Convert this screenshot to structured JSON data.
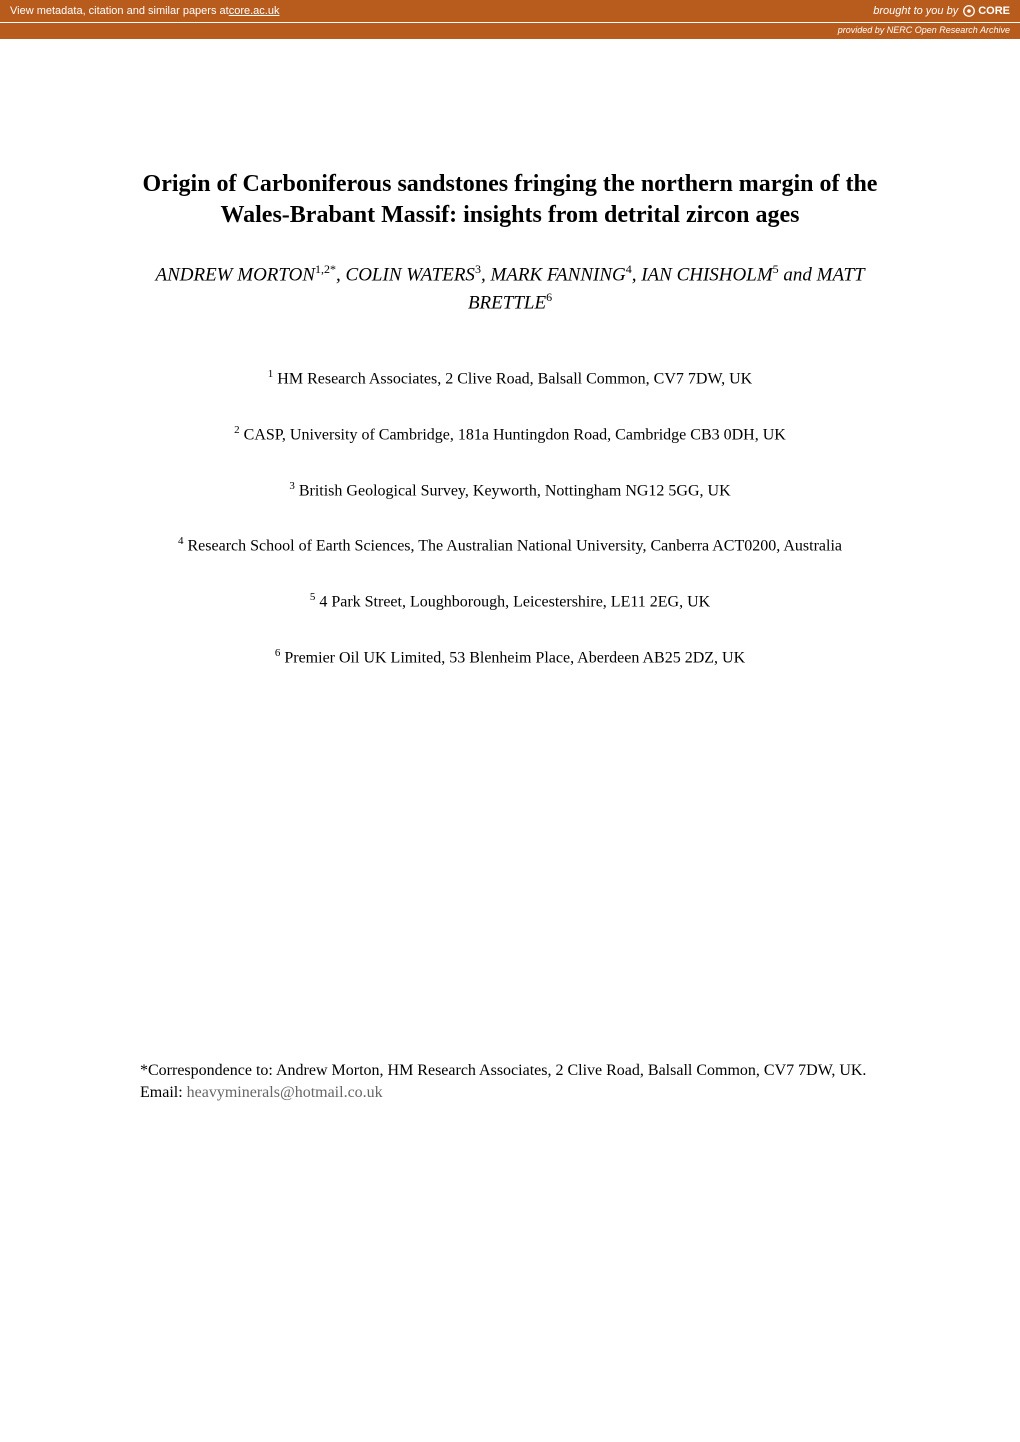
{
  "banner": {
    "left_text": "View metadata, citation and similar papers at ",
    "link_text": "core.ac.uk",
    "right_prefix": "brought to you by ",
    "core_label": "CORE",
    "sub_text": "provided by NERC Open Research Archive"
  },
  "title": "Origin of Carboniferous sandstones fringing the northern margin of the Wales-Brabant Massif: insights from detrital zircon ages",
  "authors_html": "ANDREW MORTON<sup>1,2*</sup>, COLIN WATERS<sup>3</sup>, MARK FANNING<sup>4</sup>, IAN CHISHOLM<sup>5</sup> and MATT BRETTLE<sup>6</sup>",
  "affiliations": [
    {
      "num": "1",
      "text": "HM Research Associates, 2 Clive Road, Balsall Common, CV7 7DW, UK"
    },
    {
      "num": "2",
      "text": "CASP, University of Cambridge, 181a Huntingdon Road, Cambridge CB3 0DH, UK"
    },
    {
      "num": "3",
      "text": "British Geological Survey, Keyworth, Nottingham NG12 5GG, UK"
    },
    {
      "num": "4",
      "text": "Research School of Earth Sciences, The Australian National University, Canberra ACT0200, Australia"
    },
    {
      "num": "5",
      "text": "4 Park Street, Loughborough, Leicestershire, LE11 2EG, UK"
    },
    {
      "num": "6",
      "text": "Premier Oil UK Limited, 53 Blenheim Place, Aberdeen AB25 2DZ, UK"
    }
  ],
  "correspondence": {
    "prefix": "*Correspondence to: Andrew Morton, HM Research Associates, 2 Clive Road, Balsall Common, CV7 7DW, UK. Email: ",
    "email": "heavyminerals@hotmail.co.uk"
  },
  "colors": {
    "banner_bg": "#b85c1e",
    "banner_text": "#ffffff",
    "body_text": "#000000",
    "email_color": "#666666"
  }
}
